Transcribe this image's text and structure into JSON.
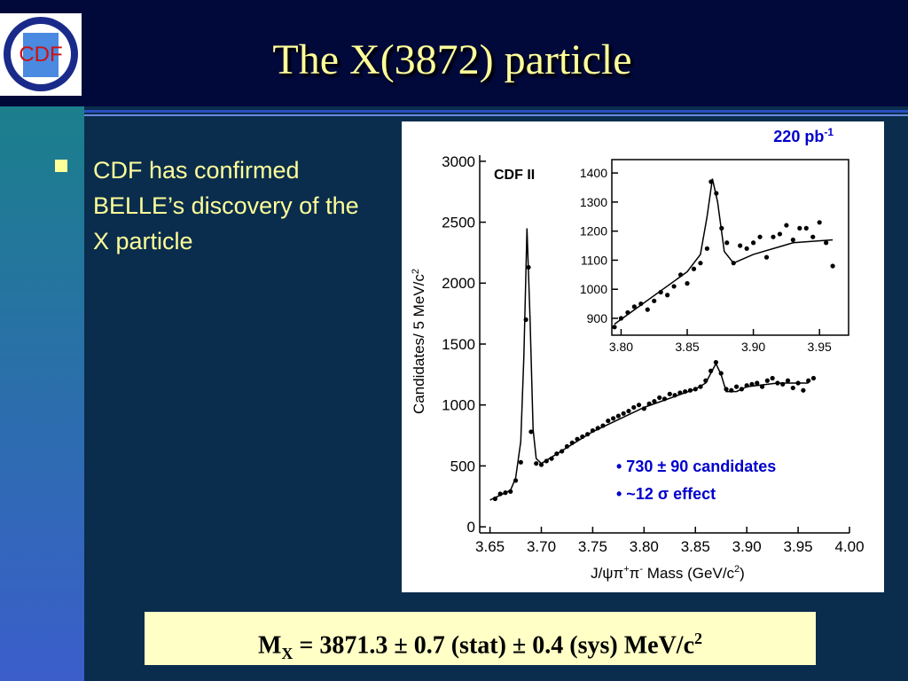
{
  "slide": {
    "title": "The X(3872) particle",
    "logo": "CDF",
    "bullet": "CDF has confirmed BELLE’s discovery of the X particle",
    "result": [
      "M",
      "X",
      " = 3871.3 ± 0.7 (stat) ± 0.4 (sys) MeV/c",
      "2"
    ]
  },
  "chart_data": [
    {
      "type": "scatter",
      "label": "CDF II",
      "luminosity": [
        "220 pb",
        "-1"
      ],
      "y_label": [
        "Candidates/ 5 MeV/c",
        "2"
      ],
      "x_label": [
        "J/ψπ",
        "+",
        "π",
        "-",
        " Mass  (GeV/c",
        "2",
        ")"
      ],
      "annotations": [
        "• 730 ± 90 candidates",
        "• ~12 σ effect"
      ],
      "xlim": [
        3.64,
        4.0
      ],
      "ylim": [
        -50,
        3050
      ],
      "xticks": [
        3.65,
        {
          "value": 3.7,
          "label": "3.70"
        },
        3.75,
        {
          "value": 3.8,
          "label": "3.80"
        },
        3.85,
        {
          "value": 3.9,
          "label": "3.90"
        },
        3.95,
        {
          "value": 4.0,
          "label": "4.00"
        }
      ],
      "yticks": [
        0,
        500,
        1000,
        1500,
        2000,
        2500,
        3000
      ],
      "points": {
        "x": [
          3.655,
          3.66,
          3.665,
          3.67,
          3.675,
          3.68,
          3.685,
          3.6875,
          3.69,
          3.695,
          3.7,
          3.705,
          3.71,
          3.715,
          3.72,
          3.725,
          3.73,
          3.735,
          3.74,
          3.745,
          3.75,
          3.755,
          3.76,
          3.765,
          3.77,
          3.775,
          3.78,
          3.785,
          3.79,
          3.795,
          3.8,
          3.805,
          3.81,
          3.815,
          3.82,
          3.825,
          3.83,
          3.835,
          3.84,
          3.845,
          3.85,
          3.855,
          3.86,
          3.865,
          3.87,
          3.875,
          3.88,
          3.885,
          3.89,
          3.895,
          3.9,
          3.905,
          3.91,
          3.915,
          3.92,
          3.925,
          3.93,
          3.935,
          3.94,
          3.945,
          3.95,
          3.955,
          3.96,
          3.965
        ],
        "y": [
          230,
          270,
          280,
          290,
          380,
          530,
          1700,
          2130,
          780,
          520,
          510,
          540,
          560,
          600,
          620,
          660,
          690,
          720,
          740,
          760,
          790,
          810,
          830,
          870,
          890,
          910,
          930,
          950,
          980,
          1000,
          970,
          1010,
          1030,
          1060,
          1050,
          1090,
          1080,
          1100,
          1110,
          1120,
          1130,
          1150,
          1200,
          1280,
          1350,
          1260,
          1130,
          1120,
          1150,
          1130,
          1160,
          1170,
          1180,
          1150,
          1200,
          1220,
          1180,
          1170,
          1200,
          1140,
          1180,
          1120,
          1200,
          1220
        ]
      },
      "fit": {
        "x": [
          3.65,
          3.66,
          3.67,
          3.675,
          3.68,
          3.683,
          3.686,
          3.689,
          3.692,
          3.695,
          3.7,
          3.75,
          3.8,
          3.85,
          3.86,
          3.865,
          3.87,
          3.875,
          3.88,
          3.89,
          3.9,
          3.93,
          3.96
        ],
        "y": [
          220,
          260,
          300,
          400,
          700,
          1400,
          2450,
          1700,
          800,
          560,
          520,
          780,
          980,
          1130,
          1180,
          1260,
          1340,
          1250,
          1110,
          1110,
          1150,
          1180,
          1180
        ]
      }
    },
    {
      "type": "scatter",
      "xlim": [
        3.793,
        3.972
      ],
      "ylim": [
        842,
        1446
      ],
      "xticks": [
        {
          "value": 3.8,
          "label": "3.80"
        },
        3.85,
        {
          "value": 3.9,
          "label": "3.90"
        },
        3.95
      ],
      "yticks": [
        900,
        1000,
        1100,
        1200,
        1300,
        1400
      ],
      "points": {
        "x": [
          3.795,
          3.8,
          3.805,
          3.81,
          3.815,
          3.82,
          3.825,
          3.83,
          3.835,
          3.84,
          3.845,
          3.85,
          3.855,
          3.86,
          3.865,
          3.868,
          3.872,
          3.876,
          3.88,
          3.885,
          3.89,
          3.895,
          3.9,
          3.905,
          3.91,
          3.915,
          3.92,
          3.925,
          3.93,
          3.935,
          3.94,
          3.945,
          3.95,
          3.955,
          3.96
        ],
        "y": [
          870,
          900,
          920,
          940,
          950,
          930,
          960,
          990,
          980,
          1010,
          1050,
          1020,
          1070,
          1090,
          1140,
          1370,
          1330,
          1210,
          1160,
          1090,
          1150,
          1140,
          1160,
          1180,
          1110,
          1180,
          1190,
          1220,
          1170,
          1210,
          1210,
          1180,
          1230,
          1160,
          1080
        ]
      },
      "fit": {
        "x": [
          3.795,
          3.85,
          3.86,
          3.865,
          3.869,
          3.873,
          3.878,
          3.885,
          3.9,
          3.93,
          3.96
        ],
        "y": [
          880,
          1060,
          1120,
          1250,
          1380,
          1300,
          1130,
          1090,
          1120,
          1160,
          1170
        ]
      }
    }
  ]
}
